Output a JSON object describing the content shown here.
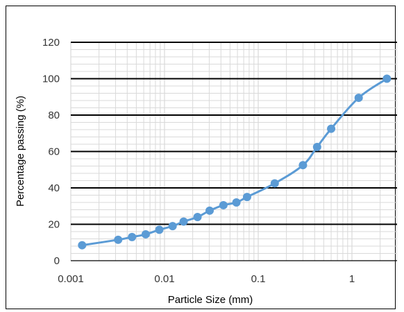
{
  "chart_data": {
    "type": "scatter",
    "xlabel": "Particle Size (mm)",
    "ylabel": "Percentage passing (%)",
    "x_scale": "log",
    "xlim": [
      0.001,
      3
    ],
    "ylim": [
      0,
      120
    ],
    "x_ticks": [
      0.001,
      0.01,
      0.1,
      1
    ],
    "x_tick_labels": [
      "0.001",
      "0.01",
      "0.1",
      "1"
    ],
    "y_ticks": [
      0,
      20,
      40,
      60,
      80,
      100,
      120
    ],
    "y_tick_labels": [
      "0",
      "20",
      "40",
      "60",
      "80",
      "100",
      "120"
    ],
    "grid": true,
    "legend": "none",
    "series": [
      {
        "color": "#5b9bd5",
        "line": "smooth",
        "x": [
          0.00132,
          0.0032,
          0.0045,
          0.0063,
          0.0088,
          0.0122,
          0.016,
          0.0225,
          0.0303,
          0.0425,
          0.0585,
          0.076,
          0.15,
          0.3,
          0.425,
          0.6,
          1.18,
          2.36
        ],
        "y": [
          8.5,
          11.5,
          13,
          14.5,
          17,
          19,
          21.5,
          24,
          27.5,
          30.5,
          32,
          35,
          42.5,
          52.5,
          62.5,
          72.5,
          89.5,
          100
        ]
      }
    ]
  }
}
